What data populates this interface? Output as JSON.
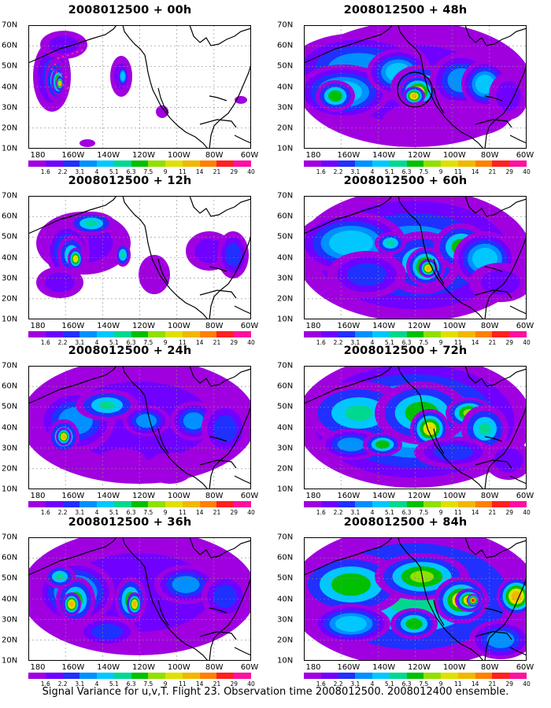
{
  "caption": "Signal Variance for u,v,T. Flight 23. Observation time 2008012500. 2008012400 ensemble.",
  "x_ticks": [
    "180",
    "160W",
    "140W",
    "120W",
    "100W",
    "80W",
    "60W"
  ],
  "y_ticks": [
    "70N",
    "60N",
    "50N",
    "40N",
    "30N",
    "20N",
    "10N"
  ],
  "colorbar": {
    "colors": [
      "#a000e0",
      "#7000ff",
      "#2030ff",
      "#0090ff",
      "#00c8ff",
      "#00d890",
      "#00c000",
      "#90e000",
      "#e0e000",
      "#f0b800",
      "#ff8000",
      "#ff2020",
      "#ff10a0"
    ],
    "labels": [
      "1.6",
      "2.2",
      "3.1",
      "4",
      "5.1",
      "6.3",
      "7.5",
      "9",
      "11",
      "14",
      "21",
      "29",
      "40"
    ]
  },
  "panels": [
    {
      "title": "2008012500 + 00h"
    },
    {
      "title": "2008012500 + 48h"
    },
    {
      "title": "2008012500 + 12h"
    },
    {
      "title": "2008012500 + 60h"
    },
    {
      "title": "2008012500 + 24h"
    },
    {
      "title": "2008012500 + 72h"
    },
    {
      "title": "2008012500 + 36h"
    },
    {
      "title": "2008012500 + 84h"
    }
  ]
}
